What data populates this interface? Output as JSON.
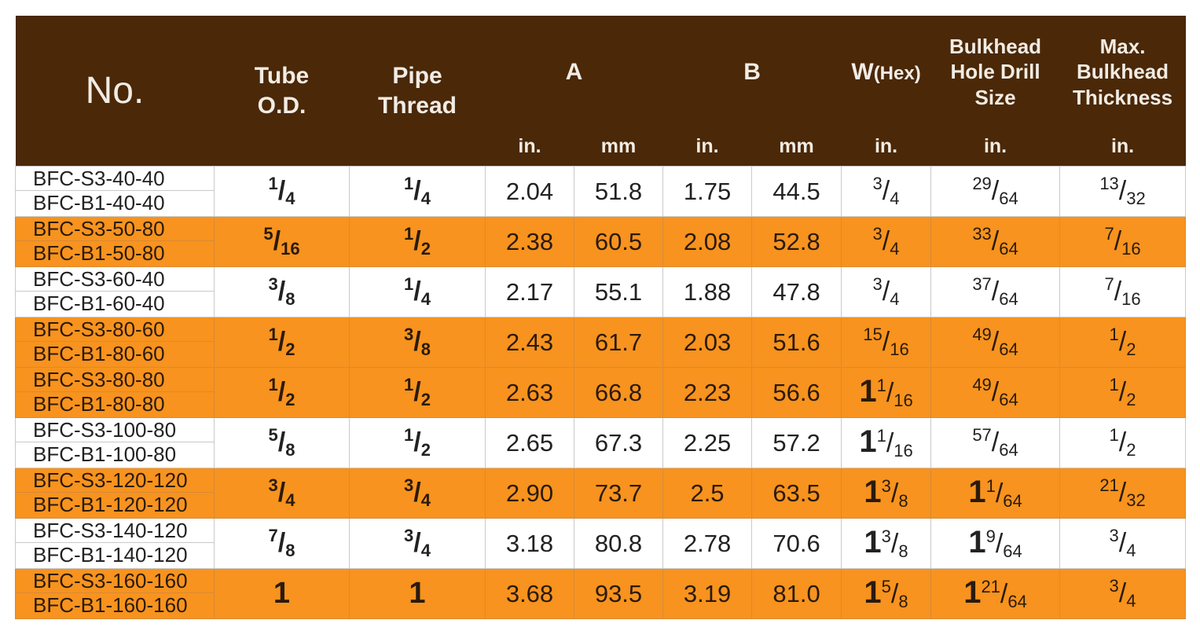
{
  "colors": {
    "header_bg": "#4a2808",
    "header_text": "#f1ece4",
    "alt_row": "#f7931e",
    "plain_row": "#ffffff"
  },
  "headers": {
    "no": "No.",
    "tube_od": [
      "Tube",
      "O.D."
    ],
    "pipe_thread": [
      "Pipe",
      "Thread"
    ],
    "a": "A",
    "b": "B",
    "w": "W",
    "w_sub": "(Hex)",
    "bulkhead_hole": [
      "Bulkhead",
      "Hole Drill",
      "Size"
    ],
    "max_bulkhead": [
      "Max.",
      "Bulkhead",
      "Thickness"
    ],
    "unit_in": "in.",
    "unit_mm": "mm"
  },
  "rows": [
    {
      "models": [
        "BFC-S3-40-40",
        "BFC-B1-40-40"
      ],
      "tube": {
        "w": "",
        "n": "1",
        "d": "4"
      },
      "pipe": {
        "w": "",
        "n": "1",
        "d": "4"
      },
      "a_in": "2.04",
      "a_mm": "51.8",
      "b_in": "1.75",
      "b_mm": "44.5",
      "hex": {
        "w": "",
        "n": "3",
        "d": "4"
      },
      "hole": {
        "w": "",
        "n": "29",
        "d": "64"
      },
      "thick": {
        "w": "",
        "n": "13",
        "d": "32"
      },
      "alt": false
    },
    {
      "models": [
        "BFC-S3-50-80",
        "BFC-B1-50-80"
      ],
      "tube": {
        "w": "",
        "n": "5",
        "d": "16"
      },
      "pipe": {
        "w": "",
        "n": "1",
        "d": "2"
      },
      "a_in": "2.38",
      "a_mm": "60.5",
      "b_in": "2.08",
      "b_mm": "52.8",
      "hex": {
        "w": "",
        "n": "3",
        "d": "4"
      },
      "hole": {
        "w": "",
        "n": "33",
        "d": "64"
      },
      "thick": {
        "w": "",
        "n": "7",
        "d": "16"
      },
      "alt": true
    },
    {
      "models": [
        "BFC-S3-60-40",
        "BFC-B1-60-40"
      ],
      "tube": {
        "w": "",
        "n": "3",
        "d": "8"
      },
      "pipe": {
        "w": "",
        "n": "1",
        "d": "4"
      },
      "a_in": "2.17",
      "a_mm": "55.1",
      "b_in": "1.88",
      "b_mm": "47.8",
      "hex": {
        "w": "",
        "n": "3",
        "d": "4"
      },
      "hole": {
        "w": "",
        "n": "37",
        "d": "64"
      },
      "thick": {
        "w": "",
        "n": "7",
        "d": "16"
      },
      "alt": false
    },
    {
      "models": [
        "BFC-S3-80-60",
        "BFC-B1-80-60"
      ],
      "tube": {
        "w": "",
        "n": "1",
        "d": "2"
      },
      "pipe": {
        "w": "",
        "n": "3",
        "d": "8"
      },
      "a_in": "2.43",
      "a_mm": "61.7",
      "b_in": "2.03",
      "b_mm": "51.6",
      "hex": {
        "w": "",
        "n": "15",
        "d": "16"
      },
      "hole": {
        "w": "",
        "n": "49",
        "d": "64"
      },
      "thick": {
        "w": "",
        "n": "1",
        "d": "2"
      },
      "alt": true
    },
    {
      "models": [
        "BFC-S3-80-80",
        "BFC-B1-80-80"
      ],
      "tube": {
        "w": "",
        "n": "1",
        "d": "2"
      },
      "pipe": {
        "w": "",
        "n": "1",
        "d": "2"
      },
      "a_in": "2.63",
      "a_mm": "66.8",
      "b_in": "2.23",
      "b_mm": "56.6",
      "hex": {
        "w": "1",
        "n": "1",
        "d": "16"
      },
      "hole": {
        "w": "",
        "n": "49",
        "d": "64"
      },
      "thick": {
        "w": "",
        "n": "1",
        "d": "2"
      },
      "alt": true
    },
    {
      "models": [
        "BFC-S3-100-80",
        "BFC-B1-100-80"
      ],
      "tube": {
        "w": "",
        "n": "5",
        "d": "8"
      },
      "pipe": {
        "w": "",
        "n": "1",
        "d": "2"
      },
      "a_in": "2.65",
      "a_mm": "67.3",
      "b_in": "2.25",
      "b_mm": "57.2",
      "hex": {
        "w": "1",
        "n": "1",
        "d": "16"
      },
      "hole": {
        "w": "",
        "n": "57",
        "d": "64"
      },
      "thick": {
        "w": "",
        "n": "1",
        "d": "2"
      },
      "alt": false
    },
    {
      "models": [
        "BFC-S3-120-120",
        "BFC-B1-120-120"
      ],
      "tube": {
        "w": "",
        "n": "3",
        "d": "4"
      },
      "pipe": {
        "w": "",
        "n": "3",
        "d": "4"
      },
      "a_in": "2.90",
      "a_mm": "73.7",
      "b_in": "2.5",
      "b_mm": "63.5",
      "hex": {
        "w": "1",
        "n": "3",
        "d": "8"
      },
      "hole": {
        "w": "1",
        "n": "1",
        "d": "64"
      },
      "thick": {
        "w": "",
        "n": "21",
        "d": "32"
      },
      "alt": true
    },
    {
      "models": [
        "BFC-S3-140-120",
        "BFC-B1-140-120"
      ],
      "tube": {
        "w": "",
        "n": "7",
        "d": "8"
      },
      "pipe": {
        "w": "",
        "n": "3",
        "d": "4"
      },
      "a_in": "3.18",
      "a_mm": "80.8",
      "b_in": "2.78",
      "b_mm": "70.6",
      "hex": {
        "w": "1",
        "n": "3",
        "d": "8"
      },
      "hole": {
        "w": "1",
        "n": "9",
        "d": "64"
      },
      "thick": {
        "w": "",
        "n": "3",
        "d": "4"
      },
      "alt": false
    },
    {
      "models": [
        "BFC-S3-160-160",
        "BFC-B1-160-160"
      ],
      "tube": {
        "w": "1",
        "n": "",
        "d": ""
      },
      "pipe": {
        "w": "1",
        "n": "",
        "d": ""
      },
      "a_in": "3.68",
      "a_mm": "93.5",
      "b_in": "3.19",
      "b_mm": "81.0",
      "hex": {
        "w": "1",
        "n": "5",
        "d": "8"
      },
      "hole": {
        "w": "1",
        "n": "21",
        "d": "64"
      },
      "thick": {
        "w": "",
        "n": "3",
        "d": "4"
      },
      "alt": true
    }
  ]
}
